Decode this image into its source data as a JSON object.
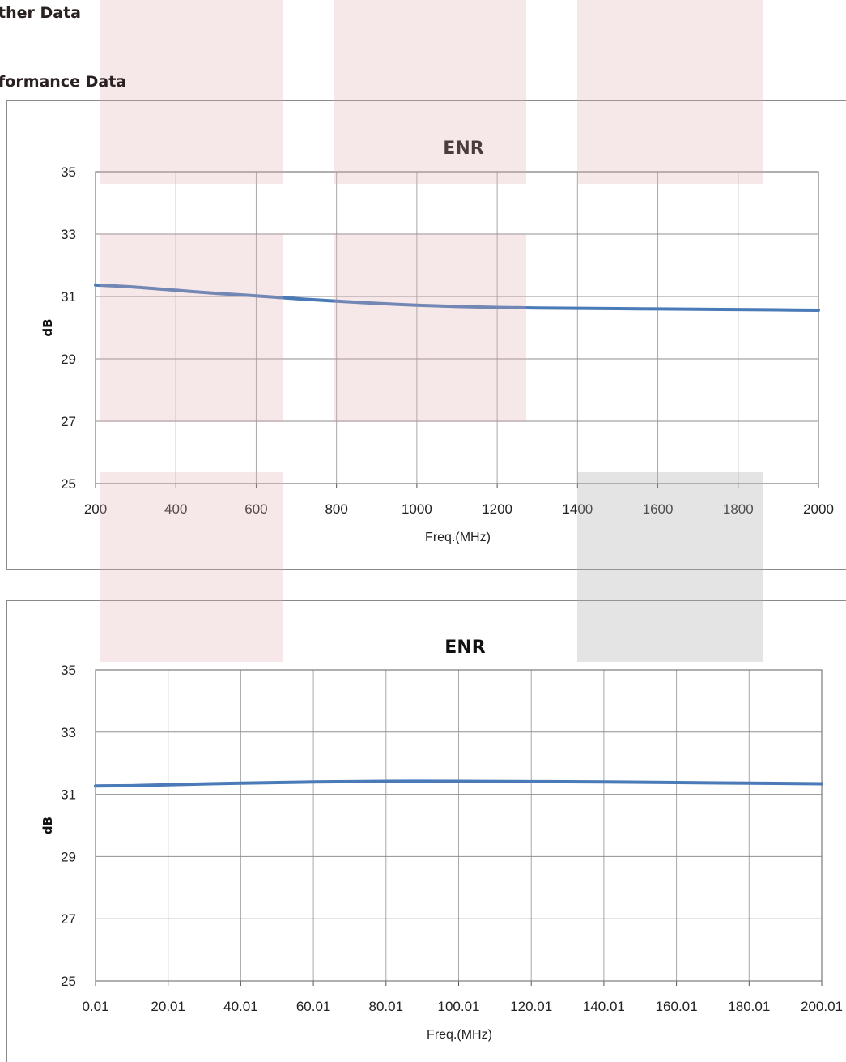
{
  "page": {
    "heading1": "ther Data",
    "heading2": "formance Data"
  },
  "colors": {
    "series": "#4a7ab8",
    "grid": "#a8a8a8",
    "plot_border": "#7a7a7a",
    "watermark_pink": "#dea9ae",
    "watermark_grey": "#aaaaaa"
  },
  "chart_data": [
    {
      "type": "line",
      "title": "ENR",
      "xlabel": "Freq.(MHz)",
      "ylabel": "dB",
      "xlim": [
        200,
        2000
      ],
      "ylim": [
        25,
        35
      ],
      "xticks": [
        "200",
        "400",
        "600",
        "800",
        "1000",
        "1200",
        "1400",
        "1600",
        "1800",
        "2000"
      ],
      "yticks": [
        "25",
        "27",
        "29",
        "31",
        "33",
        "35"
      ],
      "grid": true,
      "legend": "none",
      "series": [
        {
          "x": [
            200,
            300,
            400,
            500,
            600,
            700,
            800,
            900,
            1000,
            1100,
            1200,
            1300,
            1400,
            1500,
            1600,
            1700,
            1800,
            1900,
            2000
          ],
          "y": [
            31.37,
            31.3,
            31.2,
            31.1,
            31.02,
            30.93,
            30.85,
            30.78,
            30.72,
            30.68,
            30.65,
            30.63,
            30.62,
            30.61,
            30.6,
            30.59,
            30.58,
            30.57,
            30.56
          ]
        }
      ]
    },
    {
      "type": "line",
      "title": "ENR",
      "xlabel": "Freq.(MHz)",
      "ylabel": "dB",
      "xlim": [
        0.01,
        200.01
      ],
      "ylim": [
        25,
        35
      ],
      "xticks": [
        "0.01",
        "20.01",
        "40.01",
        "60.01",
        "80.01",
        "100.01",
        "120.01",
        "140.01",
        "160.01",
        "180.01",
        "200.01"
      ],
      "yticks": [
        "25",
        "27",
        "29",
        "31",
        "33",
        "35"
      ],
      "grid": true,
      "legend": "none",
      "series": [
        {
          "x": [
            0.01,
            10.01,
            20.01,
            40.01,
            60.01,
            80.01,
            100.01,
            120.01,
            140.01,
            160.01,
            180.01,
            200.01
          ],
          "y": [
            31.27,
            31.28,
            31.31,
            31.36,
            31.4,
            31.42,
            31.42,
            31.41,
            31.4,
            31.38,
            31.36,
            31.34
          ]
        }
      ]
    }
  ]
}
